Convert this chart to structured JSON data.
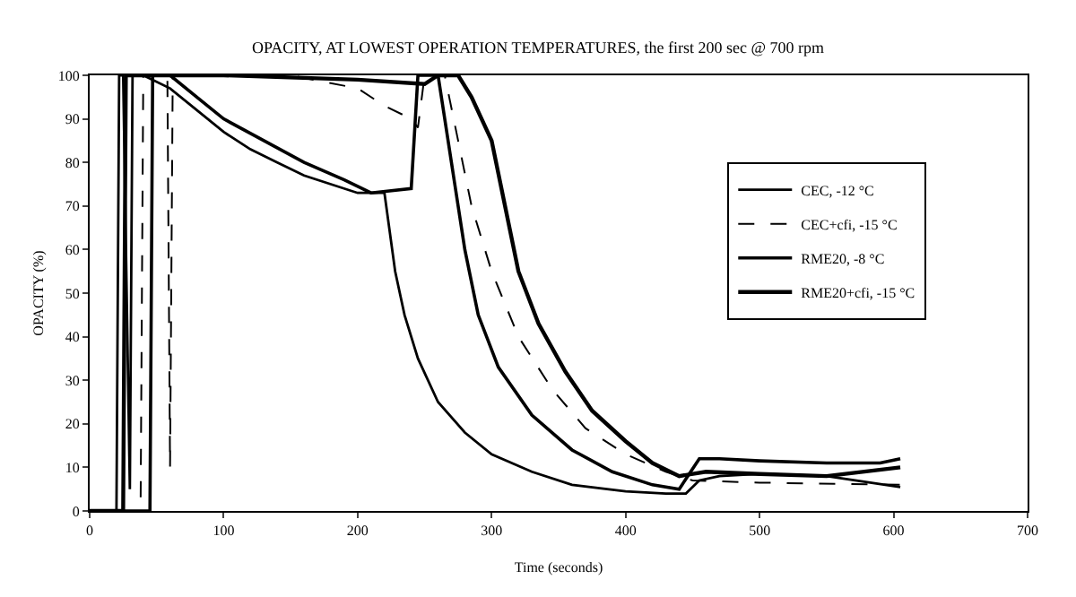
{
  "chart_data": {
    "type": "line",
    "title": "OPACITY, AT LOWEST OPERATION TEMPERATURES, the first 200 sec @ 700 rpm",
    "xlabel": "Time (seconds)",
    "ylabel": "OPACITY (%)",
    "xlim": [
      0,
      700
    ],
    "xticks": [
      0,
      100,
      200,
      300,
      400,
      500,
      600,
      700
    ],
    "ylim": [
      0,
      100
    ],
    "yticks": [
      0,
      10,
      20,
      30,
      40,
      50,
      60,
      70,
      80,
      90,
      100
    ],
    "grid": false,
    "legend": "right",
    "marker": "none",
    "series": [
      {
        "name": "CEC, -12 °C",
        "color": "#000000",
        "line_style": "solid",
        "x": [
          0,
          20,
          22,
          25,
          30,
          32,
          40,
          60,
          80,
          100,
          120,
          140,
          160,
          180,
          200,
          220,
          228,
          235,
          245,
          260,
          280,
          300,
          330,
          360,
          400,
          430,
          445,
          455,
          470,
          500,
          550,
          605
        ],
        "values": [
          0,
          0,
          100,
          100,
          5,
          100,
          100,
          97,
          92,
          87,
          83,
          80,
          77,
          75,
          73,
          73,
          55,
          45,
          35,
          25,
          18,
          13,
          9,
          6,
          4.5,
          4,
          4,
          7,
          8,
          8.5,
          8,
          5.5
        ]
      },
      {
        "name": "CEC+cfi, -15 °C",
        "color": "#000000",
        "line_style": "dashed",
        "x": [
          0,
          38,
          40,
          58,
          60,
          62,
          150,
          200,
          220,
          240,
          245,
          250,
          265,
          275,
          285,
          300,
          320,
          345,
          370,
          400,
          430,
          450,
          500,
          605
        ],
        "values": [
          0,
          0,
          100,
          100,
          10,
          100,
          100,
          97,
          93,
          90,
          88,
          100,
          100,
          85,
          70,
          55,
          40,
          28,
          19,
          13,
          9,
          7,
          6.5,
          6
        ]
      },
      {
        "name": "RME20, -8 °C",
        "color": "#000000",
        "line_style": "solid",
        "x": [
          0,
          45,
          47,
          60,
          80,
          100,
          130,
          160,
          190,
          210,
          240,
          245,
          260,
          270,
          280,
          290,
          305,
          330,
          360,
          390,
          420,
          440,
          455,
          470,
          500,
          550,
          590,
          605
        ],
        "values": [
          0,
          0,
          100,
          100,
          95,
          90,
          85,
          80,
          76,
          73,
          74,
          100,
          100,
          80,
          60,
          45,
          33,
          22,
          14,
          9,
          6,
          5,
          12,
          12,
          11.5,
          11,
          11,
          12
        ]
      },
      {
        "name": "RME20+cfi, -15 °C",
        "color": "#000000",
        "line_style": "solid",
        "x": [
          0,
          25,
          27,
          100,
          200,
          250,
          260,
          275,
          285,
          300,
          310,
          320,
          335,
          355,
          375,
          400,
          420,
          440,
          460,
          500,
          550,
          605
        ],
        "values": [
          0,
          0,
          100,
          100,
          99,
          98,
          100,
          100,
          95,
          85,
          70,
          55,
          43,
          32,
          23,
          16,
          11,
          8,
          9,
          8.5,
          8,
          10
        ]
      }
    ]
  }
}
